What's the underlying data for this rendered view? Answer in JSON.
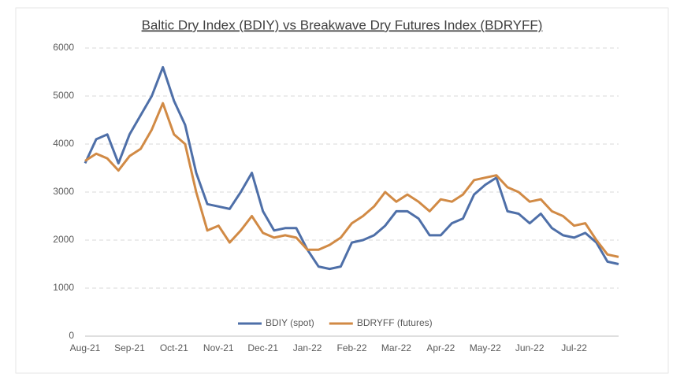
{
  "chart_data": {
    "type": "line",
    "title": "Baltic Dry Index (BDIY) vs Breakwave Dry Futures Index (BDRYFF)",
    "categories": [
      "Aug-21",
      null,
      null,
      null,
      "Sep-21",
      null,
      null,
      null,
      "Oct-21",
      null,
      null,
      null,
      "Nov-21",
      null,
      null,
      null,
      "Dec-21",
      null,
      null,
      null,
      "Jan-22",
      null,
      null,
      null,
      "Feb-22",
      null,
      null,
      null,
      "Mar-22",
      null,
      null,
      null,
      "Apr-22",
      null,
      null,
      null,
      "May-22",
      null,
      null,
      null,
      "Jun-22",
      null,
      null,
      null,
      "Jul-22",
      null,
      null,
      null,
      null
    ],
    "series": [
      {
        "name": "BDIY (spot)",
        "color": "#4e6fa8",
        "values": [
          3600,
          4100,
          4200,
          3600,
          4200,
          4600,
          5000,
          5600,
          4900,
          4400,
          3400,
          2750,
          2700,
          2650,
          3000,
          3400,
          2600,
          2200,
          2250,
          2250,
          1800,
          1450,
          1400,
          1450,
          1950,
          2000,
          2100,
          2300,
          2600,
          2600,
          2450,
          2100,
          2100,
          2350,
          2450,
          2950,
          3150,
          3300,
          2600,
          2550,
          2350,
          2550,
          2250,
          2100,
          2050,
          2150,
          1950,
          1550,
          1500
        ]
      },
      {
        "name": "BDRYFF (futures)",
        "color": "#d18a45",
        "values": [
          3650,
          3800,
          3700,
          3450,
          3750,
          3900,
          4300,
          4850,
          4200,
          4000,
          3000,
          2200,
          2300,
          1950,
          2200,
          2500,
          2150,
          2050,
          2100,
          2050,
          1800,
          1800,
          1900,
          2050,
          2350,
          2500,
          2700,
          3000,
          2800,
          2950,
          2800,
          2600,
          2850,
          2800,
          2950,
          3250,
          3300,
          3350,
          3100,
          3000,
          2800,
          2850,
          2600,
          2500,
          2300,
          2350,
          2000,
          1700,
          1650
        ]
      }
    ],
    "ylim": [
      0,
      6000
    ],
    "yticks": [
      0,
      1000,
      2000,
      3000,
      4000,
      5000,
      6000
    ],
    "grid": true,
    "legend": "bottom"
  }
}
